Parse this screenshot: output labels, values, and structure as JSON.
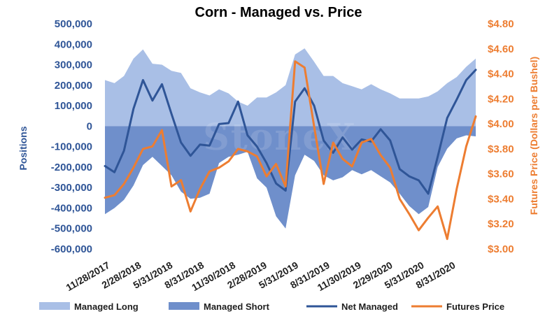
{
  "chart_data": {
    "type": "area",
    "title": "Corn - Managed vs. Price",
    "ylabel": "Positions",
    "ylabel_right": "Futures Price (Dollars per Bushel)",
    "ylim": [
      -600000,
      500000
    ],
    "ylim_right": [
      3.0,
      4.8
    ],
    "yticks": [
      "500,000",
      "400,000",
      "300,000",
      "200,000",
      "100,000",
      "0",
      "-100,000",
      "-200,000",
      "-300,000",
      "-400,000",
      "-500,000",
      "-600,000"
    ],
    "yticks_right": [
      "$4.80",
      "$4.60",
      "$4.40",
      "$4.20",
      "$4.00",
      "$3.80",
      "$3.60",
      "$3.40",
      "$3.20",
      "$3.00"
    ],
    "xtick_labels": [
      "11/28/2017",
      "2/28/2018",
      "5/31/2018",
      "8/31/2018",
      "11/30/2018",
      "2/28/2019",
      "5/31/2019",
      "8/31/2019",
      "11/30/2019",
      "2/29/2020",
      "5/31/2020",
      "8/31/2020"
    ],
    "x_dates": [
      "2017-11-28",
      "2017-12-26",
      "2018-01-23",
      "2018-02-20",
      "2018-03-20",
      "2018-04-17",
      "2018-05-15",
      "2018-06-12",
      "2018-07-10",
      "2018-08-07",
      "2018-09-04",
      "2018-10-02",
      "2018-10-30",
      "2018-11-27",
      "2018-12-25",
      "2019-01-22",
      "2019-02-19",
      "2019-03-19",
      "2019-04-16",
      "2019-05-14",
      "2019-06-11",
      "2019-07-09",
      "2019-08-06",
      "2019-09-03",
      "2019-10-01",
      "2019-10-29",
      "2019-11-26",
      "2019-12-24",
      "2020-01-21",
      "2020-02-18",
      "2020-03-17",
      "2020-04-14",
      "2020-05-12",
      "2020-06-09",
      "2020-07-07",
      "2020-08-04",
      "2020-09-01",
      "2020-09-29",
      "2020-10-27",
      "2020-11-24"
    ],
    "legend_position": "bottom",
    "grid": false,
    "watermark": "StoneX",
    "series": [
      {
        "name": "Managed Long",
        "axis": "left",
        "color": "#a9bfe6",
        "values": [
          225000,
          210000,
          245000,
          330000,
          375000,
          305000,
          300000,
          270000,
          260000,
          185000,
          165000,
          150000,
          180000,
          160000,
          120000,
          100000,
          140000,
          140000,
          165000,
          200000,
          350000,
          380000,
          315000,
          245000,
          245000,
          210000,
          195000,
          180000,
          205000,
          180000,
          160000,
          135000,
          135000,
          135000,
          145000,
          170000,
          210000,
          240000,
          290000,
          330000
        ]
      },
      {
        "name": "Managed Short",
        "axis": "left",
        "color": "#6f8fcb",
        "values": [
          -430000,
          -400000,
          -360000,
          -290000,
          -190000,
          -150000,
          -195000,
          -240000,
          -320000,
          -355000,
          -350000,
          -330000,
          -180000,
          -150000,
          -140000,
          -125000,
          -255000,
          -300000,
          -440000,
          -500000,
          -240000,
          -140000,
          -170000,
          -240000,
          -265000,
          -250000,
          -215000,
          -235000,
          -215000,
          -245000,
          -275000,
          -330000,
          -390000,
          -430000,
          -395000,
          -200000,
          -110000,
          -60000,
          -45000,
          -50000
        ]
      },
      {
        "name": "Net Managed",
        "axis": "left",
        "color": "#2f5597",
        "values": [
          -195000,
          -225000,
          -120000,
          85000,
          225000,
          125000,
          205000,
          60000,
          -80000,
          -145000,
          -90000,
          -95000,
          10000,
          15000,
          120000,
          -45000,
          -100000,
          -180000,
          -280000,
          -315000,
          120000,
          185000,
          100000,
          -70000,
          -130000,
          -55000,
          -115000,
          -65000,
          -75000,
          -15000,
          -70000,
          -210000,
          -245000,
          -265000,
          -330000,
          -150000,
          40000,
          130000,
          225000,
          275000
        ]
      },
      {
        "name": "Futures Price",
        "axis": "right",
        "color": "#ed7d31",
        "values": [
          3.41,
          3.43,
          3.52,
          3.65,
          3.8,
          3.82,
          3.95,
          3.5,
          3.55,
          3.3,
          3.48,
          3.62,
          3.65,
          3.7,
          3.8,
          3.78,
          3.74,
          3.58,
          3.68,
          3.5,
          4.5,
          4.45,
          3.98,
          3.52,
          3.85,
          3.72,
          3.66,
          3.85,
          3.88,
          3.75,
          3.65,
          3.4,
          3.28,
          3.15,
          3.25,
          3.34,
          3.08,
          3.48,
          3.82,
          4.06
        ]
      }
    ]
  }
}
